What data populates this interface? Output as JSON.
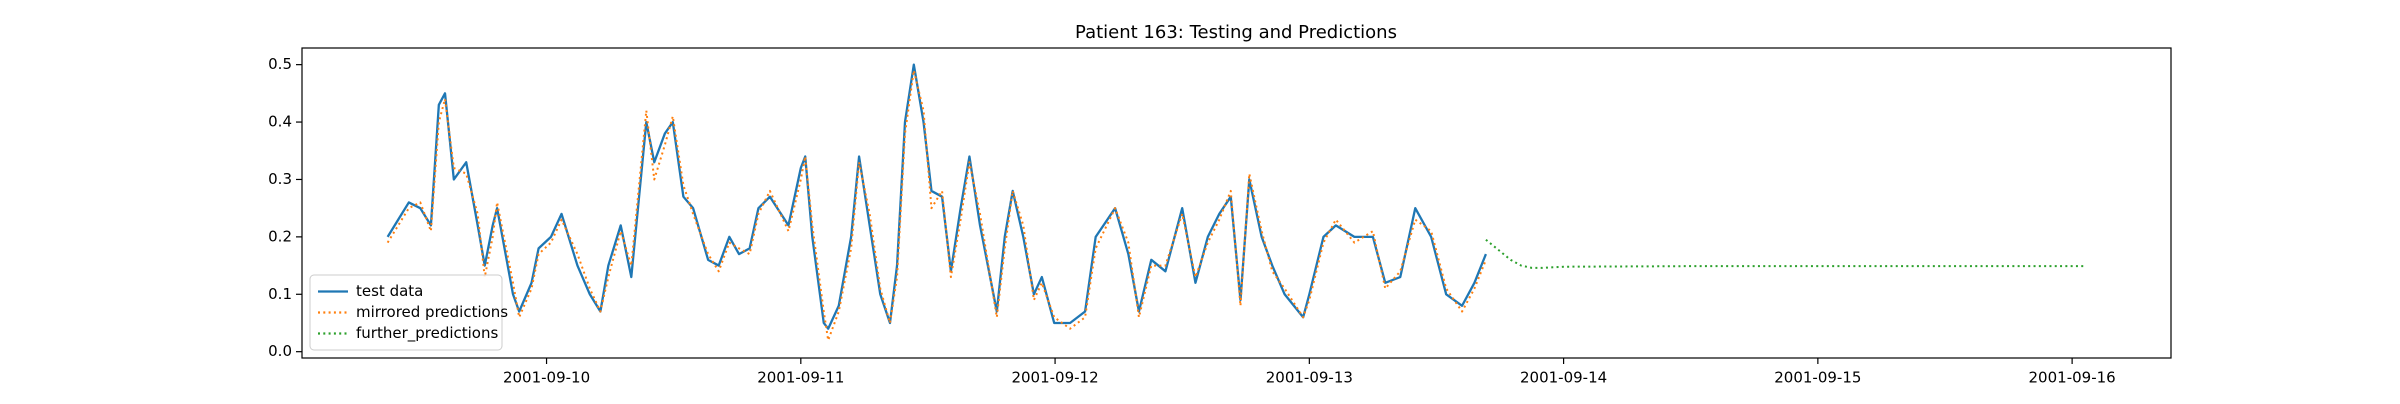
{
  "chart_data": {
    "type": "line",
    "title": "Patient 163: Testing and Predictions",
    "xlim": [
      "2001-09-09T00:55",
      "2001-09-16T09:20"
    ],
    "xticks": [
      "2001-09-10",
      "2001-09-11",
      "2001-09-12",
      "2001-09-13",
      "2001-09-14",
      "2001-09-15",
      "2001-09-16"
    ],
    "ylim": [
      -0.011,
      0.529
    ],
    "yticks": [
      {
        "value": 0,
        "label": "0.0"
      },
      0.1,
      0.2,
      0.3,
      0.4,
      0.5
    ],
    "legend": "lower left",
    "series": [
      {
        "name": "test data",
        "color": "#1f77b4",
        "style": "solid",
        "x": [
          "2001-09-09T09:00",
          "2001-09-09T10:00",
          "2001-09-09T11:00",
          "2001-09-09T12:05",
          "2001-09-09T13:05",
          "2001-09-09T13:50",
          "2001-09-09T14:25",
          "2001-09-09T15:15",
          "2001-09-09T16:25",
          "2001-09-09T17:30",
          "2001-09-09T18:10",
          "2001-09-09T18:55",
          "2001-09-09T19:20",
          "2001-09-09T20:50",
          "2001-09-09T21:25",
          "2001-09-09T22:35",
          "2001-09-09T23:15",
          "2001-09-10T00:25",
          "2001-09-10T01:25",
          "2001-09-10T02:55",
          "2001-09-10T04:05",
          "2001-09-10T05:05",
          "2001-09-10T05:50",
          "2001-09-10T07:00",
          "2001-09-10T08:00",
          "2001-09-10T09:25",
          "2001-09-10T10:10",
          "2001-09-10T11:10",
          "2001-09-10T11:55",
          "2001-09-10T12:55",
          "2001-09-10T13:50",
          "2001-09-10T15:15",
          "2001-09-10T16:15",
          "2001-09-10T17:15",
          "2001-09-10T18:10",
          "2001-09-10T19:10",
          "2001-09-10T20:00",
          "2001-09-10T21:05",
          "2001-09-10T22:50",
          "2001-09-11T00:00",
          "2001-09-11T00:25",
          "2001-09-11T01:05",
          "2001-09-11T02:10",
          "2001-09-11T02:35",
          "2001-09-11T03:35",
          "2001-09-11T04:45",
          "2001-09-11T05:30",
          "2001-09-11T06:30",
          "2001-09-11T07:30",
          "2001-09-11T08:25",
          "2001-09-11T09:05",
          "2001-09-11T09:50",
          "2001-09-11T10:40",
          "2001-09-11T11:35",
          "2001-09-11T12:20",
          "2001-09-11T13:20",
          "2001-09-11T14:10",
          "2001-09-11T15:05",
          "2001-09-11T15:55",
          "2001-09-11T16:55",
          "2001-09-11T18:30",
          "2001-09-11T19:15",
          "2001-09-11T20:00",
          "2001-09-11T21:00",
          "2001-09-11T22:00",
          "2001-09-11T22:45",
          "2001-09-11T23:55",
          "2001-09-12T01:25",
          "2001-09-12T02:50",
          "2001-09-12T03:50",
          "2001-09-12T05:40",
          "2001-09-12T06:55",
          "2001-09-12T07:55",
          "2001-09-12T09:05",
          "2001-09-12T10:25",
          "2001-09-12T12:00",
          "2001-09-12T13:15",
          "2001-09-12T14:25",
          "2001-09-12T15:30",
          "2001-09-12T16:35",
          "2001-09-12T17:30",
          "2001-09-12T18:20",
          "2001-09-12T19:30",
          "2001-09-12T20:30",
          "2001-09-12T21:40",
          "2001-09-12T23:25",
          "2001-09-13T00:00",
          "2001-09-13T01:20",
          "2001-09-13T02:30",
          "2001-09-13T04:15",
          "2001-09-13T06:00",
          "2001-09-13T07:10",
          "2001-09-13T08:35",
          "2001-09-13T10:00",
          "2001-09-13T11:30",
          "2001-09-13T12:55",
          "2001-09-13T14:25",
          "2001-09-13T15:35",
          "2001-09-13T16:40"
        ],
        "values": [
          0.2,
          0.23,
          0.26,
          0.25,
          0.22,
          0.43,
          0.45,
          0.3,
          0.33,
          0.22,
          0.15,
          0.22,
          0.25,
          0.1,
          0.07,
          0.12,
          0.18,
          0.2,
          0.24,
          0.15,
          0.1,
          0.07,
          0.15,
          0.22,
          0.13,
          0.4,
          0.33,
          0.38,
          0.4,
          0.27,
          0.25,
          0.16,
          0.15,
          0.2,
          0.17,
          0.18,
          0.25,
          0.27,
          0.22,
          0.32,
          0.34,
          0.2,
          0.05,
          0.04,
          0.08,
          0.2,
          0.34,
          0.22,
          0.1,
          0.05,
          0.15,
          0.4,
          0.5,
          0.4,
          0.28,
          0.27,
          0.14,
          0.25,
          0.34,
          0.22,
          0.07,
          0.2,
          0.28,
          0.2,
          0.1,
          0.13,
          0.05,
          0.05,
          0.07,
          0.2,
          0.25,
          0.17,
          0.07,
          0.16,
          0.14,
          0.25,
          0.12,
          0.2,
          0.24,
          0.27,
          0.09,
          0.3,
          0.2,
          0.15,
          0.1,
          0.06,
          0.1,
          0.2,
          0.22,
          0.2,
          0.2,
          0.12,
          0.13,
          0.25,
          0.2,
          0.1,
          0.08,
          0.12,
          0.17
        ]
      },
      {
        "name": "mirrored predictions",
        "color": "#ff7f0e",
        "style": "dotted",
        "x": [
          "2001-09-09T09:00",
          "2001-09-09T10:00",
          "2001-09-09T11:00",
          "2001-09-09T12:05",
          "2001-09-09T13:05",
          "2001-09-09T13:50",
          "2001-09-09T14:25",
          "2001-09-09T15:15",
          "2001-09-09T16:25",
          "2001-09-09T17:30",
          "2001-09-09T18:10",
          "2001-09-09T18:55",
          "2001-09-09T19:20",
          "2001-09-09T20:50",
          "2001-09-09T21:25",
          "2001-09-09T22:35",
          "2001-09-09T23:15",
          "2001-09-10T00:25",
          "2001-09-10T01:25",
          "2001-09-10T02:55",
          "2001-09-10T04:05",
          "2001-09-10T05:05",
          "2001-09-10T05:50",
          "2001-09-10T07:00",
          "2001-09-10T08:00",
          "2001-09-10T09:25",
          "2001-09-10T10:10",
          "2001-09-10T11:10",
          "2001-09-10T11:55",
          "2001-09-10T12:55",
          "2001-09-10T13:50",
          "2001-09-10T15:15",
          "2001-09-10T16:15",
          "2001-09-10T17:15",
          "2001-09-10T18:10",
          "2001-09-10T19:10",
          "2001-09-10T20:00",
          "2001-09-10T21:05",
          "2001-09-10T22:50",
          "2001-09-11T00:00",
          "2001-09-11T00:25",
          "2001-09-11T01:05",
          "2001-09-11T02:10",
          "2001-09-11T02:35",
          "2001-09-11T03:35",
          "2001-09-11T04:45",
          "2001-09-11T05:30",
          "2001-09-11T06:30",
          "2001-09-11T07:30",
          "2001-09-11T08:25",
          "2001-09-11T09:05",
          "2001-09-11T09:50",
          "2001-09-11T10:40",
          "2001-09-11T11:35",
          "2001-09-11T12:20",
          "2001-09-11T13:20",
          "2001-09-11T14:10",
          "2001-09-11T15:05",
          "2001-09-11T15:55",
          "2001-09-11T16:55",
          "2001-09-11T18:30",
          "2001-09-11T19:15",
          "2001-09-11T20:00",
          "2001-09-11T21:00",
          "2001-09-11T22:00",
          "2001-09-11T22:45",
          "2001-09-11T23:55",
          "2001-09-12T01:25",
          "2001-09-12T02:50",
          "2001-09-12T03:50",
          "2001-09-12T05:40",
          "2001-09-12T06:55",
          "2001-09-12T07:55",
          "2001-09-12T09:05",
          "2001-09-12T10:25",
          "2001-09-12T12:00",
          "2001-09-12T13:15",
          "2001-09-12T14:25",
          "2001-09-12T15:30",
          "2001-09-12T16:35",
          "2001-09-12T17:30",
          "2001-09-12T18:20",
          "2001-09-12T19:30",
          "2001-09-12T20:30",
          "2001-09-12T21:40",
          "2001-09-12T23:25",
          "2001-09-13T00:00",
          "2001-09-13T01:20",
          "2001-09-13T02:30",
          "2001-09-13T04:15",
          "2001-09-13T06:00",
          "2001-09-13T07:10",
          "2001-09-13T08:35",
          "2001-09-13T10:00",
          "2001-09-13T11:30",
          "2001-09-13T12:55",
          "2001-09-13T14:25",
          "2001-09-13T15:35",
          "2001-09-13T16:40"
        ],
        "values": [
          0.19,
          0.22,
          0.25,
          0.26,
          0.21,
          0.4,
          0.44,
          0.32,
          0.31,
          0.24,
          0.13,
          0.2,
          0.26,
          0.12,
          0.06,
          0.11,
          0.17,
          0.19,
          0.23,
          0.17,
          0.11,
          0.07,
          0.13,
          0.21,
          0.15,
          0.42,
          0.3,
          0.36,
          0.41,
          0.29,
          0.24,
          0.17,
          0.14,
          0.19,
          0.18,
          0.17,
          0.24,
          0.28,
          0.21,
          0.3,
          0.34,
          0.22,
          0.07,
          0.02,
          0.07,
          0.18,
          0.33,
          0.24,
          0.11,
          0.05,
          0.13,
          0.38,
          0.49,
          0.42,
          0.25,
          0.28,
          0.13,
          0.23,
          0.33,
          0.24,
          0.06,
          0.18,
          0.28,
          0.22,
          0.09,
          0.12,
          0.06,
          0.04,
          0.06,
          0.18,
          0.25,
          0.19,
          0.06,
          0.15,
          0.15,
          0.24,
          0.13,
          0.19,
          0.23,
          0.28,
          0.08,
          0.31,
          0.21,
          0.14,
          0.11,
          0.06,
          0.09,
          0.19,
          0.23,
          0.19,
          0.21,
          0.11,
          0.14,
          0.23,
          0.21,
          0.11,
          0.07,
          0.11,
          0.16
        ]
      },
      {
        "name": "further_predictions",
        "color": "#2ca02c",
        "style": "dotted",
        "x": [
          "2001-09-13T16:40",
          "2001-09-13T18:00",
          "2001-09-13T19:00",
          "2001-09-13T20:00",
          "2001-09-13T21:00",
          "2001-09-13T22:00",
          "2001-09-14T00:00",
          "2001-09-14T12:00",
          "2001-09-15T00:00",
          "2001-09-15T12:00",
          "2001-09-16T00:00",
          "2001-09-16T01:20"
        ],
        "values": [
          0.195,
          0.175,
          0.16,
          0.15,
          0.146,
          0.146,
          0.148,
          0.149,
          0.149,
          0.149,
          0.149,
          0.149
        ]
      }
    ]
  }
}
